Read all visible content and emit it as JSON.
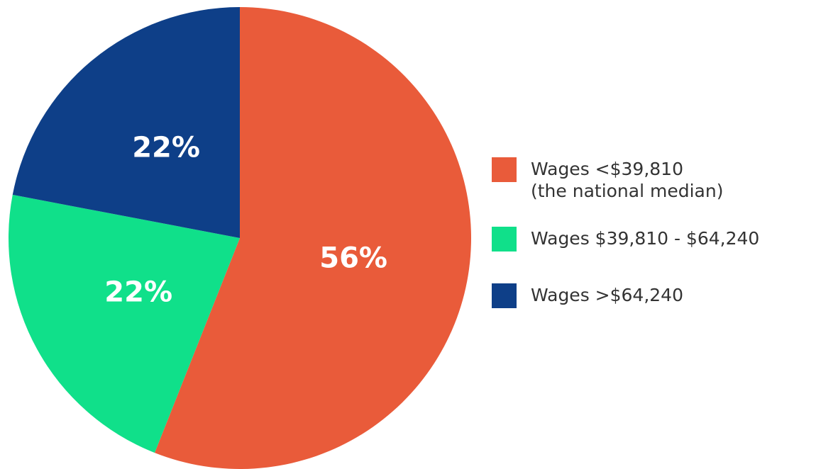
{
  "chart_data": {
    "type": "pie",
    "labels": [
      "Wages <$39,810\n(the national median)",
      "Wages $39,810 - $64,240",
      "Wages >$64,240"
    ],
    "values": [
      56,
      22,
      22
    ],
    "value_labels": [
      "56%",
      "22%",
      "22%"
    ],
    "colors": [
      "#e95b3a",
      "#10e08a",
      "#0e3f88"
    ]
  }
}
